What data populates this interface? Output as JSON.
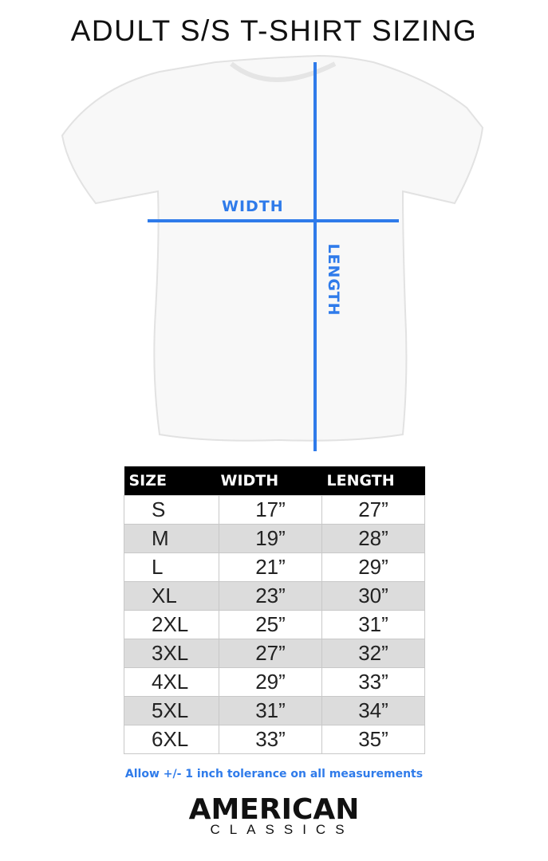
{
  "title": "ADULT S/S T-SHIRT SIZING",
  "diagram": {
    "width_label": "WIDTH",
    "length_label": "LENGTH",
    "line_color": "#2f7bea"
  },
  "table": {
    "headers": [
      "SIZE",
      "WIDTH",
      "LENGTH"
    ],
    "rows": [
      [
        "S",
        "17”",
        "27”"
      ],
      [
        "M",
        "19”",
        "28”"
      ],
      [
        "L",
        "21”",
        "29”"
      ],
      [
        "XL",
        "23”",
        "30”"
      ],
      [
        "2XL",
        "25”",
        "31”"
      ],
      [
        "3XL",
        "27”",
        "32”"
      ],
      [
        "4XL",
        "29”",
        "33”"
      ],
      [
        "5XL",
        "31”",
        "34”"
      ],
      [
        "6XL",
        "33”",
        "35”"
      ]
    ]
  },
  "note": "Allow +/- 1 inch tolerance on all measurements",
  "brand": {
    "line1": "AMERICAN",
    "line2": "CLASSICS"
  }
}
